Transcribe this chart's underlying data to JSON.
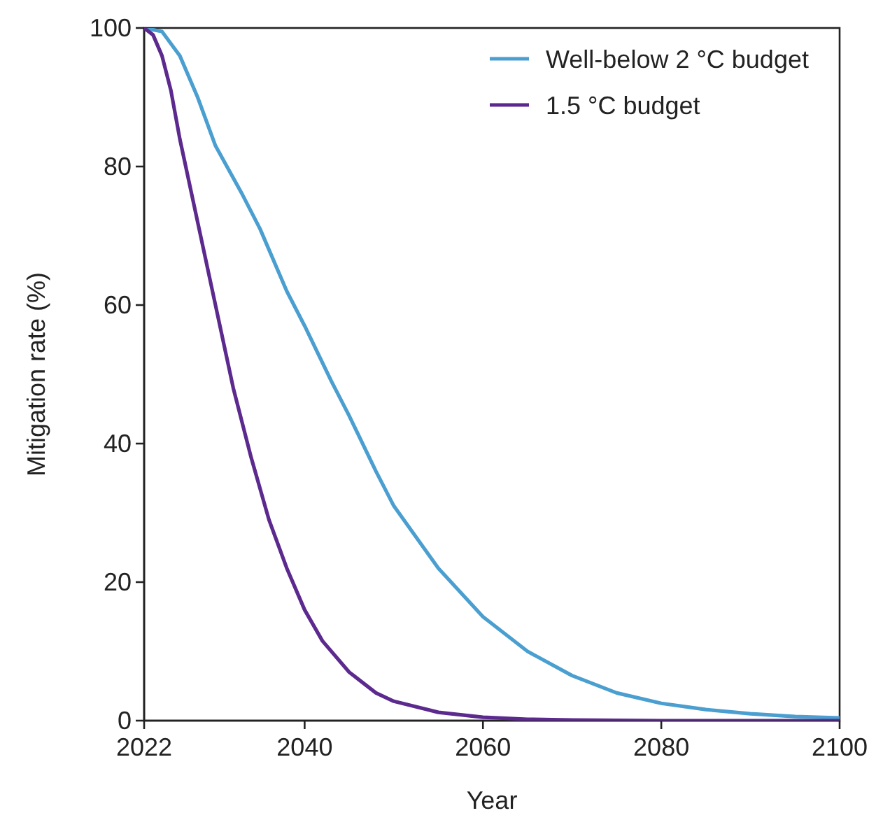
{
  "chart_data": {
    "type": "line",
    "xlabel": "Year",
    "ylabel": "Mitigation rate (%)",
    "xlim": [
      2022,
      2100
    ],
    "ylim": [
      0,
      100
    ],
    "xticks": [
      2022,
      2040,
      2060,
      2080,
      2100
    ],
    "yticks": [
      0,
      20,
      40,
      60,
      80,
      100
    ],
    "legend": "top right",
    "grid": false,
    "marker": "none",
    "line_style": "solid",
    "series": [
      {
        "name": "Well-below 2 °C budget",
        "color": "#4a9fd0",
        "x": [
          2022,
          2024,
          2026,
          2028,
          2030,
          2033,
          2035,
          2038,
          2040,
          2043,
          2045,
          2048,
          2050,
          2055,
          2060,
          2065,
          2070,
          2075,
          2080,
          2085,
          2090,
          2095,
          2100
        ],
        "values": [
          100,
          99.5,
          96,
          90,
          83,
          76,
          71,
          62,
          57,
          49,
          44,
          36,
          31,
          22,
          15,
          10,
          6.5,
          4,
          2.5,
          1.6,
          1,
          0.6,
          0.4
        ]
      },
      {
        "name": "1.5 °C budget",
        "color": "#5c2a8e",
        "x": [
          2022,
          2023,
          2024,
          2025,
          2026,
          2028,
          2030,
          2032,
          2034,
          2036,
          2038,
          2040,
          2042,
          2045,
          2048,
          2050,
          2055,
          2060,
          2065,
          2070,
          2080,
          2100
        ],
        "values": [
          100,
          99,
          96,
          91,
          84,
          72,
          60,
          48,
          38,
          29,
          22,
          16,
          11.5,
          7,
          4,
          2.8,
          1.2,
          0.5,
          0.2,
          0.1,
          0,
          0
        ]
      }
    ]
  }
}
